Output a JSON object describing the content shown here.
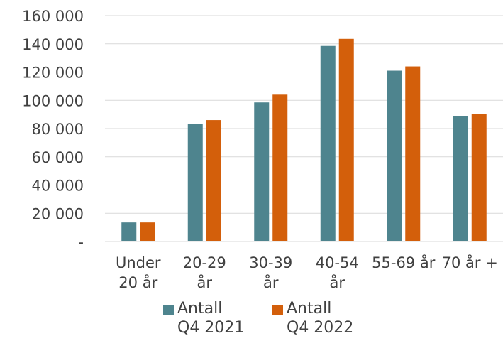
{
  "chart_data": {
    "type": "bar",
    "title": "",
    "xlabel": "",
    "ylabel": "",
    "categories": [
      "Under 20 år",
      "20-29 år",
      "30-39 år",
      "40-54 år",
      "55-69 år",
      "70 år +"
    ],
    "category_labels": [
      [
        "Under",
        "20 år"
      ],
      [
        "20-29",
        "år"
      ],
      [
        "30-39",
        "år"
      ],
      [
        "40-54",
        "år"
      ],
      [
        "55-69 år"
      ],
      [
        "70 år +"
      ]
    ],
    "series": [
      {
        "name": "Antall Q4 2021",
        "legend_lines": [
          "Antall",
          "Q4 2021"
        ],
        "color": "#4E848E",
        "values": [
          13500,
          83500,
          98500,
          138500,
          121000,
          89000
        ]
      },
      {
        "name": "Antall Q4 2022",
        "legend_lines": [
          "Antall",
          "Q4 2022"
        ],
        "color": "#D35F0B",
        "values": [
          13500,
          86000,
          104000,
          143500,
          124000,
          90500
        ]
      }
    ],
    "ylim": [
      0,
      160000
    ],
    "yticks": [
      0,
      20000,
      40000,
      60000,
      80000,
      100000,
      120000,
      140000,
      160000
    ],
    "ytick_labels": [
      "-",
      "20 000",
      "40 000",
      "60 000",
      "80 000",
      "100 000",
      "120 000",
      "140 000",
      "160 000"
    ],
    "grid": true,
    "gridline_color": "#D9D9D9",
    "legend_position": "bottom"
  }
}
